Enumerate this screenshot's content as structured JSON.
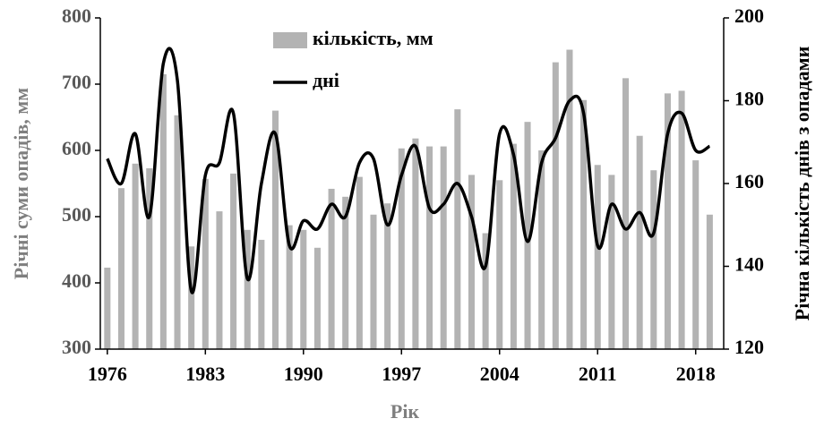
{
  "chart_data": {
    "type": "bar",
    "x_label": "Рік",
    "y_label": "Річні суми опадів, мм",
    "y2_label": "Річна кількість днів з опадами",
    "x": [
      1976,
      1977,
      1978,
      1979,
      1980,
      1981,
      1982,
      1983,
      1984,
      1985,
      1986,
      1987,
      1988,
      1989,
      1990,
      1991,
      1992,
      1993,
      1994,
      1995,
      1996,
      1997,
      1998,
      1999,
      2000,
      2001,
      2002,
      2003,
      2004,
      2005,
      2006,
      2007,
      2008,
      2009,
      2010,
      2011,
      2012,
      2013,
      2014,
      2015,
      2016,
      2017,
      2018,
      2019
    ],
    "series": [
      {
        "name": "кількість, мм",
        "type": "bar",
        "color": "#b3b3b3",
        "values": [
          423,
          543,
          580,
          573,
          715,
          653,
          455,
          557,
          508,
          565,
          480,
          465,
          660,
          487,
          480,
          453,
          542,
          530,
          560,
          503,
          520,
          603,
          618,
          606,
          606,
          662,
          563,
          475,
          555,
          610,
          643,
          600,
          733,
          752,
          676,
          578,
          563,
          709,
          622,
          570,
          686,
          690,
          585,
          503
        ]
      },
      {
        "name": "дні",
        "type": "line",
        "axis": "y2",
        "color": "#000000",
        "smooth": true,
        "values": [
          166,
          160,
          172,
          152,
          189,
          185,
          134,
          162,
          165,
          177,
          137,
          160,
          172,
          145,
          151,
          149,
          155,
          152,
          165,
          166,
          150,
          162,
          169,
          154,
          155,
          160,
          152,
          140,
          172,
          167,
          146,
          165,
          171,
          180,
          177,
          145,
          155,
          149,
          153,
          148,
          172,
          177,
          168,
          169
        ]
      }
    ],
    "xlim": [
      1975.5,
      2020
    ],
    "xticks": [
      1976,
      1983,
      1990,
      1997,
      2004,
      2011,
      2018
    ],
    "ylim": [
      300,
      800
    ],
    "yticks": [
      300,
      400,
      500,
      600,
      700,
      800
    ],
    "y2lim": [
      120,
      200
    ],
    "y2ticks": [
      120,
      140,
      160,
      180,
      200
    ],
    "grid": false,
    "legend": "top"
  }
}
